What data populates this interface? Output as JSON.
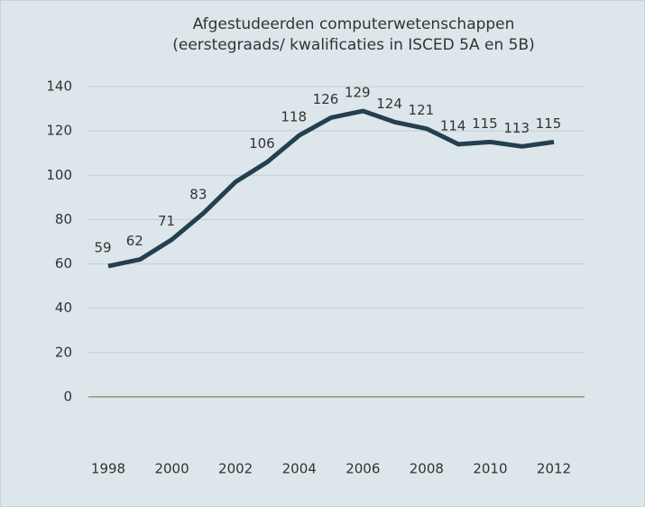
{
  "chart_data": {
    "type": "line",
    "title": "Afgestudeerden computerwetenschappen",
    "subtitle": "(eerstegraads/ kwalificaties in ISCED 5A en 5B)",
    "x": [
      1998,
      1999,
      2000,
      2001,
      2002,
      2003,
      2004,
      2005,
      2006,
      2007,
      2008,
      2009,
      2010,
      2011,
      2012
    ],
    "series": [
      {
        "name": "Afgestudeerden",
        "color": "#243f50",
        "values": [
          59,
          62,
          71,
          83,
          97,
          106,
          118,
          126,
          129,
          124,
          121,
          114,
          115,
          113,
          115
        ],
        "value_labels": [
          "59",
          "62",
          "71",
          "83",
          null,
          "106",
          "118",
          "126",
          "129",
          "124",
          "121",
          "114",
          "115",
          "113",
          "115"
        ]
      }
    ],
    "xlim": [
      1998,
      2012
    ],
    "xticks": [
      1998,
      2000,
      2002,
      2004,
      2006,
      2008,
      2010,
      2012
    ],
    "ylim": [
      -20,
      140
    ],
    "yticks": [
      0,
      20,
      40,
      60,
      80,
      100,
      120,
      140
    ],
    "grid": true
  }
}
